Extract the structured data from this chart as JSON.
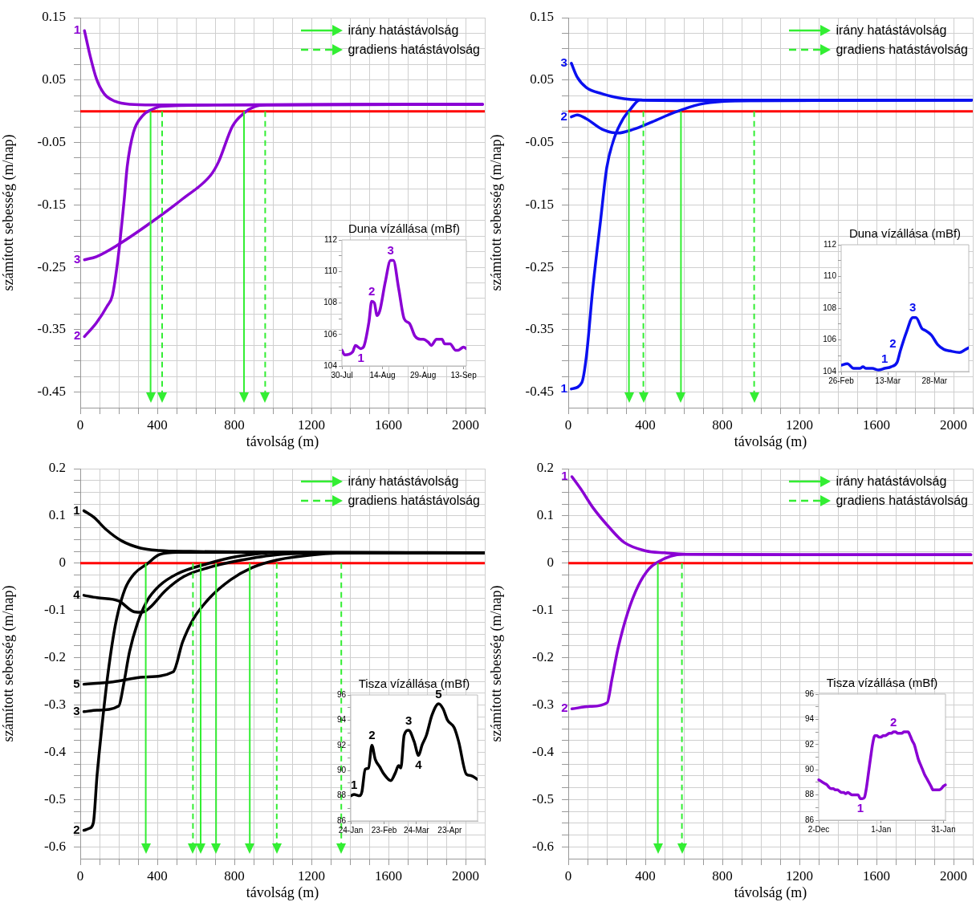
{
  "chart_data": [
    {
      "type": "line",
      "xlabel": "távolság (m)",
      "ylabel": "számított sebesség (m/nap)",
      "xlim": [
        0,
        2100
      ],
      "ylim": [
        -0.475,
        0.15
      ],
      "xticks": [
        0,
        {
          "value": 100,
          "label": null
        },
        {
          "value": 200,
          "label": null
        },
        {
          "value": 300,
          "label": null
        },
        400,
        {
          "value": 500,
          "label": null
        },
        {
          "value": 600,
          "label": null
        },
        {
          "value": 700,
          "label": null
        },
        800,
        {
          "value": 900,
          "label": null
        },
        {
          "value": 1000,
          "label": null
        },
        {
          "value": 1100,
          "label": null
        },
        1200,
        {
          "value": 1300,
          "label": null
        },
        {
          "value": 1400,
          "label": null
        },
        {
          "value": 1500,
          "label": null
        },
        1600,
        {
          "value": 1700,
          "label": null
        },
        {
          "value": 1800,
          "label": null
        },
        {
          "value": 1900,
          "label": null
        },
        2000,
        {
          "value": 2100,
          "label": null
        }
      ],
      "yticks": [
        0.15,
        {
          "value": 0.125,
          "label": null
        },
        {
          "value": 0.1,
          "label": null
        },
        {
          "value": 0.075,
          "label": null
        },
        0.05,
        {
          "value": 0.025,
          "label": null
        },
        {
          "value": 0,
          "label": null
        },
        {
          "value": -0.025,
          "label": null
        },
        -0.05,
        {
          "value": -0.075,
          "label": null
        },
        {
          "value": -0.1,
          "label": null
        },
        {
          "value": -0.125,
          "label": null
        },
        -0.15,
        {
          "value": -0.175,
          "label": null
        },
        {
          "value": -0.2,
          "label": null
        },
        {
          "value": -0.225,
          "label": null
        },
        -0.25,
        {
          "value": -0.275,
          "label": null
        },
        {
          "value": -0.3,
          "label": null
        },
        {
          "value": -0.325,
          "label": null
        },
        -0.35,
        {
          "value": -0.375,
          "label": null
        },
        {
          "value": -0.4,
          "label": null
        },
        {
          "value": -0.425,
          "label": null
        },
        -0.45
      ],
      "grid": true,
      "legend": "top right",
      "series": [
        {
          "name": "1",
          "color": "#8a00d4",
          "x": [
            22,
            51,
            84,
            124,
            180,
            260,
            373,
            700,
            1400,
            2088
          ],
          "values": [
            0.129,
            0.089,
            0.052,
            0.028,
            0.016,
            0.011,
            0.01,
            0.01,
            0.011,
            0.011
          ]
        },
        {
          "name": "2",
          "color": "#8a00d4",
          "x": [
            22,
            84,
            140,
            167,
            196,
            228,
            244,
            276,
            324,
            373,
            421,
            694,
            2088
          ],
          "values": [
            -0.361,
            -0.339,
            -0.312,
            -0.295,
            -0.236,
            -0.142,
            -0.088,
            -0.034,
            -0.007,
            0.003,
            0.008,
            0.01,
            0.011
          ]
        },
        {
          "name": "3",
          "color": "#8a00d4",
          "x": [
            22,
            84,
            196,
            373,
            533,
            678,
            718,
            790,
            854,
            903,
            967,
            2088
          ],
          "values": [
            -0.238,
            -0.233,
            -0.214,
            -0.177,
            -0.14,
            -0.102,
            -0.081,
            -0.024,
            -0.002,
            0.007,
            0.01,
            0.011
          ]
        }
      ],
      "ref_lines": [
        {
          "axis": "y",
          "value": 0,
          "color": "#ff0000"
        },
        {
          "axis": "x",
          "value": 365,
          "label": "irány hatástávolság",
          "color": "#33ee33",
          "line_style": "solid"
        },
        {
          "axis": "x",
          "value": 425,
          "label": "gradiens hatástávolság",
          "color": "#33ee33",
          "line_style": "dashed"
        },
        {
          "axis": "x",
          "value": 850,
          "color": "#33ee33",
          "line_style": "solid"
        },
        {
          "axis": "x",
          "value": 960,
          "color": "#33ee33",
          "line_style": "dashed"
        }
      ]
    },
    {
      "type": "line",
      "title": "Duna vízállása (mBf)",
      "xlim": [
        "--07-30",
        "--09-14"
      ],
      "ylim": [
        104,
        112
      ],
      "xticks": [
        {
          "value": "--07-30",
          "label": "30-Jul"
        },
        {
          "value": "--08-14",
          "label": "14-Aug"
        },
        {
          "value": "--08-29",
          "label": "29-Aug"
        },
        {
          "value": "--09-13",
          "label": "13-Sep"
        }
      ],
      "yticks": [
        104,
        {
          "value": 105,
          "label": null
        },
        106,
        {
          "value": 107,
          "label": null
        },
        108,
        {
          "value": 109,
          "label": null
        },
        110,
        {
          "value": 111,
          "label": null
        },
        112
      ],
      "x": [
        "--07-30",
        "--07-31",
        "--08-03",
        "--08-04",
        "--08-06",
        "--08-07",
        "--08-09",
        "--08-10",
        "--08-11",
        "--08-12",
        "--08-13",
        "--08-15",
        "--08-17",
        "--08-18",
        "--08-20",
        "--08-22",
        "--08-24",
        "--08-26",
        "--08-28",
        "--08-29",
        "--08-31",
        "--09-01",
        "--09-03",
        "--09-05",
        "--09-06",
        "--09-08",
        "--09-10",
        "--09-11",
        "--09-13",
        "--09-14"
      ],
      "series": [
        {
          "color": "#8a00d4",
          "values": [
            105.0,
            104.7,
            104.9,
            105.3,
            105.1,
            105.2,
            106.8,
            108.1,
            108.0,
            107.2,
            107.5,
            109.3,
            110.7,
            110.7,
            108.9,
            107.0,
            106.7,
            105.9,
            105.7,
            105.7,
            105.5,
            105.3,
            105.7,
            105.7,
            105.4,
            105.4,
            105.0,
            105.0,
            105.2,
            105.1
          ]
        }
      ],
      "annotations": [
        {
          "text": "1",
          "x": "--08-06",
          "y": 105.1
        },
        {
          "text": "2",
          "x": "--08-10",
          "y": 108.1
        },
        {
          "text": "3",
          "x": "--08-17",
          "y": 110.7
        }
      ]
    },
    {
      "type": "line",
      "xlabel": "távolság (m)",
      "ylabel": "számított sebesség (m/nap)",
      "xlim": [
        0,
        2100
      ],
      "ylim": [
        -0.475,
        0.15
      ],
      "xticks": [
        0,
        {
          "value": 100,
          "label": null
        },
        {
          "value": 200,
          "label": null
        },
        {
          "value": 300,
          "label": null
        },
        400,
        {
          "value": 500,
          "label": null
        },
        {
          "value": 600,
          "label": null
        },
        {
          "value": 700,
          "label": null
        },
        800,
        {
          "value": 900,
          "label": null
        },
        {
          "value": 1000,
          "label": null
        },
        {
          "value": 1100,
          "label": null
        },
        1200,
        {
          "value": 1300,
          "label": null
        },
        {
          "value": 1400,
          "label": null
        },
        {
          "value": 1500,
          "label": null
        },
        1600,
        {
          "value": 1700,
          "label": null
        },
        {
          "value": 1800,
          "label": null
        },
        {
          "value": 1900,
          "label": null
        },
        2000,
        {
          "value": 2100,
          "label": null
        }
      ],
      "yticks": [
        0.15,
        {
          "value": 0.125,
          "label": null
        },
        {
          "value": 0.1,
          "label": null
        },
        {
          "value": 0.075,
          "label": null
        },
        0.05,
        {
          "value": 0.025,
          "label": null
        },
        {
          "value": 0,
          "label": null
        },
        {
          "value": -0.025,
          "label": null
        },
        -0.05,
        {
          "value": -0.075,
          "label": null
        },
        {
          "value": -0.1,
          "label": null
        },
        {
          "value": -0.125,
          "label": null
        },
        -0.15,
        {
          "value": -0.175,
          "label": null
        },
        {
          "value": -0.2,
          "label": null
        },
        {
          "value": -0.225,
          "label": null
        },
        -0.25,
        {
          "value": -0.275,
          "label": null
        },
        {
          "value": -0.3,
          "label": null
        },
        {
          "value": -0.325,
          "label": null
        },
        -0.35,
        {
          "value": -0.375,
          "label": null
        },
        {
          "value": -0.4,
          "label": null
        },
        {
          "value": -0.425,
          "label": null
        },
        -0.45
      ],
      "grid": true,
      "legend": "top right",
      "series": [
        {
          "name": "3",
          "color": "#0a10f0",
          "x": [
            16,
            46,
            94,
            176,
            289,
            387,
            712,
            2094
          ],
          "values": [
            0.077,
            0.055,
            0.038,
            0.028,
            0.02,
            0.018,
            0.017,
            0.018
          ]
        },
        {
          "name": "2",
          "color": "#0a10f0",
          "x": [
            16,
            46,
            94,
            176,
            257,
            338,
            436,
            550,
            680,
            810,
            972,
            2094
          ],
          "values": [
            -0.009,
            -0.006,
            -0.012,
            -0.029,
            -0.035,
            -0.029,
            -0.017,
            -0.002,
            0.011,
            0.016,
            0.017,
            0.018
          ]
        },
        {
          "name": "1",
          "color": "#0a10f0",
          "x": [
            16,
            70,
            94,
            127,
            167,
            200,
            241,
            281,
            322,
            371,
            436,
            2094
          ],
          "values": [
            -0.445,
            -0.435,
            -0.393,
            -0.285,
            -0.177,
            -0.09,
            -0.041,
            -0.014,
            0.003,
            0.018,
            0.018,
            0.018
          ]
        }
      ],
      "ref_lines": [
        {
          "axis": "y",
          "value": 0,
          "color": "#ff0000"
        },
        {
          "axis": "x",
          "value": 315,
          "label": "irány hatástávolság",
          "color": "#33ee33",
          "line_style": "solid"
        },
        {
          "axis": "x",
          "value": 390,
          "label": "gradiens hatástávolság",
          "color": "#33ee33",
          "line_style": "dashed"
        },
        {
          "axis": "x",
          "value": 585,
          "color": "#33ee33",
          "line_style": "solid"
        },
        {
          "axis": "x",
          "value": 965,
          "color": "#33ee33",
          "line_style": "dashed"
        }
      ]
    },
    {
      "type": "line",
      "title": "Duna vízállása (mBf)",
      "xlim": [
        "--02-26",
        "--04-08"
      ],
      "ylim": [
        104,
        112
      ],
      "xticks": [
        {
          "value": "--02-26",
          "label": "26-Feb"
        },
        {
          "value": "--03-13",
          "label": "13-Mar"
        },
        {
          "value": "--03-28",
          "label": "28-Mar"
        }
      ],
      "yticks": [
        104,
        {
          "value": 105,
          "label": null
        },
        106,
        {
          "value": 107,
          "label": null
        },
        108,
        {
          "value": 109,
          "label": null
        },
        110,
        {
          "value": 111,
          "label": null
        },
        112
      ],
      "x": [
        "--02-26",
        "--02-28",
        "--03-02",
        "--03-04",
        "--03-05",
        "--03-06",
        "--03-08",
        "--03-10",
        "--03-12",
        "--03-14",
        "--03-16",
        "--03-17",
        "--03-19",
        "--03-21",
        "--03-22",
        "--03-24",
        "--03-25",
        "--03-27",
        "--03-29",
        "--03-31",
        "--04-02",
        "--04-05",
        "--04-07",
        "--04-08"
      ],
      "series": [
        {
          "color": "#0a10f0",
          "values": [
            104.4,
            104.5,
            104.2,
            104.2,
            104.3,
            104.2,
            104.2,
            104.1,
            104.2,
            104.3,
            104.6,
            105.3,
            106.5,
            107.4,
            107.4,
            106.7,
            106.6,
            106.3,
            105.7,
            105.4,
            105.3,
            105.2,
            105.4,
            105.5
          ]
        }
      ],
      "annotations": [
        {
          "text": "1",
          "x": "--03-12",
          "y": 104.2
        },
        {
          "text": "2",
          "x": "--03-17",
          "y": 105.3
        },
        {
          "text": "3",
          "x": "--03-21",
          "y": 107.4
        }
      ]
    },
    {
      "type": "line",
      "xlabel": "távolság (m)",
      "ylabel": "számított sebesség (m/nap)",
      "xlim": [
        0,
        2100
      ],
      "ylim": [
        -0.625,
        0.2
      ],
      "xticks": [
        0,
        {
          "value": 100,
          "label": null
        },
        {
          "value": 200,
          "label": null
        },
        {
          "value": 300,
          "label": null
        },
        400,
        {
          "value": 500,
          "label": null
        },
        {
          "value": 600,
          "label": null
        },
        {
          "value": 700,
          "label": null
        },
        800,
        {
          "value": 900,
          "label": null
        },
        {
          "value": 1000,
          "label": null
        },
        {
          "value": 1100,
          "label": null
        },
        1200,
        {
          "value": 1300,
          "label": null
        },
        {
          "value": 1400,
          "label": null
        },
        {
          "value": 1500,
          "label": null
        },
        1600,
        {
          "value": 1700,
          "label": null
        },
        {
          "value": 1800,
          "label": null
        },
        {
          "value": 1900,
          "label": null
        },
        2000,
        {
          "value": 2100,
          "label": null
        }
      ],
      "yticks": [
        0.2,
        {
          "value": 0.175,
          "label": null
        },
        {
          "value": 0.15,
          "label": null
        },
        {
          "value": 0.125,
          "label": null
        },
        0.1,
        {
          "value": 0.075,
          "label": null
        },
        {
          "value": 0.05,
          "label": null
        },
        {
          "value": 0.025,
          "label": null
        },
        0,
        {
          "value": -0.025,
          "label": null
        },
        {
          "value": -0.05,
          "label": null
        },
        {
          "value": -0.075,
          "label": null
        },
        -0.1,
        {
          "value": -0.125,
          "label": null
        },
        {
          "value": -0.15,
          "label": null
        },
        {
          "value": -0.175,
          "label": null
        },
        -0.2,
        {
          "value": -0.225,
          "label": null
        },
        {
          "value": -0.25,
          "label": null
        },
        {
          "value": -0.275,
          "label": null
        },
        -0.3,
        {
          "value": -0.325,
          "label": null
        },
        {
          "value": -0.35,
          "label": null
        },
        {
          "value": -0.375,
          "label": null
        },
        -0.4,
        {
          "value": -0.425,
          "label": null
        },
        {
          "value": -0.45,
          "label": null
        },
        {
          "value": -0.475,
          "label": null
        },
        -0.5,
        {
          "value": -0.525,
          "label": null
        },
        {
          "value": -0.55,
          "label": null
        },
        {
          "value": -0.575,
          "label": null
        },
        -0.6
      ],
      "grid": true,
      "legend": "top right",
      "series": [
        {
          "name": "1",
          "color": "#000000",
          "x": [
            19,
            71,
            135,
            216,
            313,
            410,
            571,
            1200,
            2095
          ],
          "values": [
            0.111,
            0.097,
            0.071,
            0.047,
            0.032,
            0.027,
            0.025,
            0.023,
            0.022
          ]
        },
        {
          "name": "4",
          "color": "#000000",
          "x": [
            19,
            87,
            200,
            281,
            321,
            361,
            442,
            539,
            668,
            829,
            1023,
            1400,
            2095
          ],
          "values": [
            -0.068,
            -0.073,
            -0.08,
            -0.103,
            -0.104,
            -0.094,
            -0.058,
            -0.028,
            -0.009,
            0.006,
            0.018,
            0.022,
            0.022
          ]
        },
        {
          "name": "5",
          "color": "#000000",
          "x": [
            19,
            168,
            329,
            482,
            531,
            587,
            668,
            781,
            894,
            1023,
            1216,
            1458,
            2095
          ],
          "values": [
            -0.256,
            -0.251,
            -0.241,
            -0.23,
            -0.167,
            -0.118,
            -0.075,
            -0.035,
            -0.009,
            0.007,
            0.018,
            0.022,
            0.022
          ]
        },
        {
          "name": "3",
          "color": "#000000",
          "x": [
            19,
            87,
            200,
            224,
            256,
            297,
            345,
            410,
            506,
            652,
            813,
            1023,
            1400,
            2095
          ],
          "values": [
            -0.314,
            -0.311,
            -0.302,
            -0.259,
            -0.187,
            -0.127,
            -0.081,
            -0.048,
            -0.022,
            -0.002,
            0.014,
            0.022,
            0.022,
            0.022
          ]
        },
        {
          "name": "2",
          "color": "#000000",
          "x": [
            19,
            47,
            68,
            87,
            111,
            144,
            184,
            232,
            281,
            345,
            410,
            506,
            1200,
            2095
          ],
          "values": [
            -0.565,
            -0.561,
            -0.549,
            -0.45,
            -0.351,
            -0.233,
            -0.127,
            -0.055,
            -0.022,
            -0.002,
            0.018,
            0.023,
            0.023,
            0.022
          ]
        }
      ],
      "ref_lines": [
        {
          "axis": "y",
          "value": 0,
          "color": "#ff0000"
        },
        {
          "axis": "x",
          "value": 340,
          "label": "irány hatástávolság",
          "color": "#33ee33",
          "line_style": "solid"
        },
        {
          "axis": "x",
          "value": 585,
          "label": "gradiens hatástávolság",
          "color": "#33ee33",
          "line_style": "dashed"
        },
        {
          "axis": "x",
          "value": 625,
          "color": "#33ee33",
          "line_style": "solid"
        },
        {
          "axis": "x",
          "value": 705,
          "color": "#33ee33",
          "line_style": "solid"
        },
        {
          "axis": "x",
          "value": 880,
          "color": "#33ee33",
          "line_style": "solid"
        },
        {
          "axis": "x",
          "value": 1020,
          "color": "#33ee33",
          "line_style": "dashed"
        },
        {
          "axis": "x",
          "value": 1355,
          "color": "#33ee33",
          "line_style": "dashed"
        }
      ]
    },
    {
      "type": "line",
      "title": "Tisza vízállása (mBf)",
      "xlim": [
        "--01-24",
        "--05-18"
      ],
      "ylim": [
        86,
        96
      ],
      "xticks": [
        {
          "value": "--01-24",
          "label": "24-Jan"
        },
        {
          "value": "--02-23",
          "label": "23-Feb"
        },
        {
          "value": "--03-24",
          "label": "24-Mar"
        },
        {
          "value": "--04-23",
          "label": "23-Apr"
        }
      ],
      "yticks": [
        86,
        {
          "value": 87,
          "label": null
        },
        88,
        {
          "value": 89,
          "label": null
        },
        90,
        {
          "value": 91,
          "label": null
        },
        92,
        {
          "value": 93,
          "label": null
        },
        94,
        {
          "value": 95,
          "label": null
        },
        96
      ],
      "x": [
        "--01-24",
        "--01-27",
        "--02-01",
        "--02-03",
        "--02-06",
        "--02-09",
        "--02-12",
        "--02-15",
        "--02-19",
        "--02-23",
        "--03-01",
        "--03-05",
        "--03-08",
        "--03-10",
        "--03-13",
        "--03-17",
        "--03-22",
        "--03-26",
        "--03-29",
        "--04-02",
        "--04-07",
        "--04-13",
        "--04-17",
        "--04-21",
        "--04-27",
        "--05-01",
        "--05-08",
        "--05-12",
        "--05-18"
      ],
      "series": [
        {
          "color": "#000000",
          "values": [
            88.0,
            88.1,
            88.0,
            88.3,
            90.1,
            90.2,
            92.0,
            90.9,
            90.3,
            89.7,
            89.2,
            89.8,
            90.4,
            90.2,
            92.8,
            93.2,
            92.3,
            91.2,
            92.0,
            92.8,
            94.4,
            95.3,
            94.9,
            94.0,
            93.4,
            92.3,
            89.7,
            89.6,
            89.3
          ]
        }
      ],
      "annotations": [
        {
          "text": "1",
          "x": "--01-27",
          "y": 88.1
        },
        {
          "text": "2",
          "x": "--02-12",
          "y": 92.0
        },
        {
          "text": "3",
          "x": "--03-17",
          "y": 93.2
        },
        {
          "text": "4",
          "x": "--03-26",
          "y": 91.2
        },
        {
          "text": "5",
          "x": "--04-13",
          "y": 95.3
        }
      ]
    },
    {
      "type": "line",
      "xlabel": "távolság (m)",
      "ylabel": "számított sebesség (m/nap)",
      "xlim": [
        0,
        2100
      ],
      "ylim": [
        -0.625,
        0.2
      ],
      "xticks": [
        0,
        {
          "value": 100,
          "label": null
        },
        {
          "value": 200,
          "label": null
        },
        {
          "value": 300,
          "label": null
        },
        400,
        {
          "value": 500,
          "label": null
        },
        {
          "value": 600,
          "label": null
        },
        {
          "value": 700,
          "label": null
        },
        800,
        {
          "value": 900,
          "label": null
        },
        {
          "value": 1000,
          "label": null
        },
        {
          "value": 1100,
          "label": null
        },
        1200,
        {
          "value": 1300,
          "label": null
        },
        {
          "value": 1400,
          "label": null
        },
        {
          "value": 1500,
          "label": null
        },
        1600,
        {
          "value": 1700,
          "label": null
        },
        {
          "value": 1800,
          "label": null
        },
        {
          "value": 1900,
          "label": null
        },
        2000,
        {
          "value": 2100,
          "label": null
        }
      ],
      "yticks": [
        0.2,
        {
          "value": 0.175,
          "label": null
        },
        {
          "value": 0.15,
          "label": null
        },
        {
          "value": 0.125,
          "label": null
        },
        0.1,
        {
          "value": 0.075,
          "label": null
        },
        {
          "value": 0.05,
          "label": null
        },
        {
          "value": 0.025,
          "label": null
        },
        0,
        {
          "value": -0.025,
          "label": null
        },
        {
          "value": -0.05,
          "label": null
        },
        {
          "value": -0.075,
          "label": null
        },
        -0.1,
        {
          "value": -0.125,
          "label": null
        },
        {
          "value": -0.15,
          "label": null
        },
        {
          "value": -0.175,
          "label": null
        },
        -0.2,
        {
          "value": -0.225,
          "label": null
        },
        {
          "value": -0.25,
          "label": null
        },
        {
          "value": -0.275,
          "label": null
        },
        -0.3,
        {
          "value": -0.325,
          "label": null
        },
        {
          "value": -0.35,
          "label": null
        },
        {
          "value": -0.375,
          "label": null
        },
        -0.4,
        {
          "value": -0.425,
          "label": null
        },
        {
          "value": -0.45,
          "label": null
        },
        {
          "value": -0.475,
          "label": null
        },
        -0.5,
        {
          "value": -0.525,
          "label": null
        },
        {
          "value": -0.55,
          "label": null
        },
        {
          "value": -0.575,
          "label": null
        },
        -0.6
      ],
      "grid": true,
      "legend": "top right",
      "series": [
        {
          "name": "1",
          "color": "#8a00d4",
          "x": [
            19,
            65,
            129,
            210,
            290,
            403,
            500,
            613,
            1200,
            2090
          ],
          "values": [
            0.183,
            0.157,
            0.117,
            0.077,
            0.044,
            0.026,
            0.022,
            0.019,
            0.018,
            0.018
          ]
        },
        {
          "name": "2",
          "color": "#8a00d4",
          "x": [
            19,
            113,
            202,
            226,
            258,
            306,
            363,
            419,
            468,
            532,
            597,
            1200,
            2090
          ],
          "values": [
            -0.308,
            -0.303,
            -0.295,
            -0.247,
            -0.181,
            -0.108,
            -0.048,
            -0.012,
            0.003,
            0.015,
            0.019,
            0.018,
            0.018
          ]
        }
      ],
      "ref_lines": [
        {
          "axis": "y",
          "value": 0,
          "color": "#ff0000"
        },
        {
          "axis": "x",
          "value": 465,
          "label": "irány hatástávolság",
          "color": "#33ee33",
          "line_style": "solid"
        },
        {
          "axis": "x",
          "value": 590,
          "label": "gradiens hatástávolság",
          "color": "#33ee33",
          "line_style": "dashed"
        }
      ]
    },
    {
      "type": "line",
      "title": "Tisza vízállása (mBf)",
      "ylim": [
        86,
        96
      ],
      "categories": [
        "2-Dec",
        null,
        null,
        null,
        null,
        null,
        null,
        null,
        null,
        null,
        null,
        null,
        null,
        null,
        null,
        null,
        null,
        null,
        null,
        null,
        null,
        null,
        null,
        null,
        null,
        null,
        null,
        null,
        null,
        null,
        "1-Jan",
        null,
        null,
        null,
        null,
        null,
        null,
        null,
        null,
        null,
        null,
        null,
        null,
        null,
        null,
        null,
        null,
        null,
        null,
        null,
        null,
        null,
        null,
        null,
        null,
        null,
        null,
        null,
        null,
        null,
        "31-Jan",
        null
      ],
      "yticks": [
        86,
        {
          "value": 87,
          "label": null
        },
        88,
        {
          "value": 89,
          "label": null
        },
        90,
        {
          "value": 91,
          "label": null
        },
        92,
        {
          "value": 93,
          "label": null
        },
        94,
        {
          "value": 95,
          "label": null
        },
        96
      ],
      "series": [
        {
          "color": "#8a00d4",
          "values": [
            89.2,
            89.1,
            89.0,
            88.9,
            88.8,
            88.6,
            88.5,
            88.5,
            88.4,
            88.4,
            88.3,
            88.2,
            88.2,
            88.1,
            88.2,
            88.1,
            88.0,
            88.0,
            88.0,
            88.0,
            87.7,
            87.7,
            87.8,
            88.6,
            89.8,
            91.0,
            92.1,
            92.7,
            92.7,
            92.6,
            92.6,
            92.7,
            92.7,
            92.8,
            92.9,
            92.9,
            93.0,
            93.0,
            92.9,
            92.9,
            92.9,
            93.0,
            93.0,
            93.0,
            92.7,
            92.3,
            92.0,
            91.4,
            90.8,
            90.4,
            90.0,
            89.6,
            89.3,
            89.0,
            88.7,
            88.4,
            88.4,
            88.4,
            88.4,
            88.5,
            88.7,
            88.8
          ]
        }
      ],
      "annotations": [
        {
          "text": "1",
          "y": 87.7
        },
        {
          "text": "2",
          "y": 93.0
        }
      ]
    }
  ]
}
